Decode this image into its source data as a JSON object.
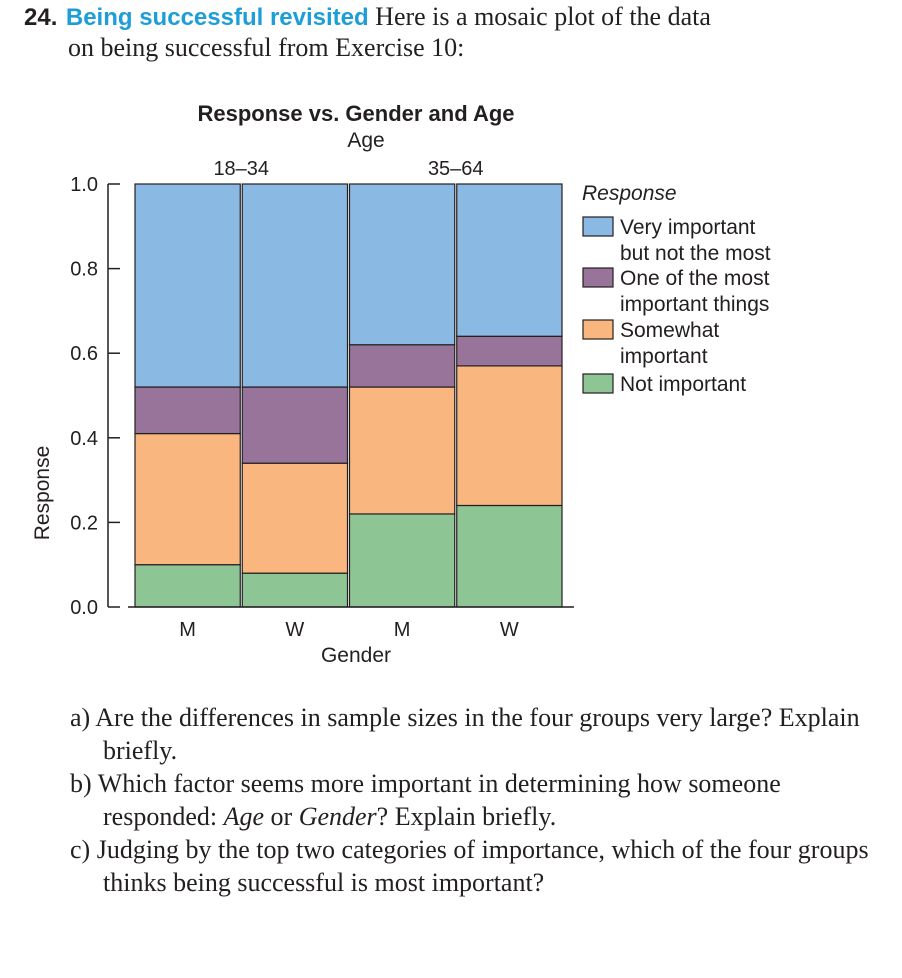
{
  "exercise": {
    "number": "24.",
    "title": "Being successful revisited",
    "intro_line1": "Here is a mosaic plot of the data",
    "intro_line2": "on being successful from Exercise 10:"
  },
  "chart_data": {
    "type": "mosaic",
    "title": "Response vs. Gender and Age",
    "top_axis_label": "Age",
    "age_groups": [
      {
        "label": "18–34",
        "columns": [
          0,
          1
        ]
      },
      {
        "label": "35–64",
        "columns": [
          2,
          3
        ]
      }
    ],
    "xlabel": "Gender",
    "ylabel": "Response",
    "ylim": [
      0,
      1
    ],
    "yticks": [
      "0.0",
      "0.2",
      "0.4",
      "0.6",
      "0.8",
      "1.0"
    ],
    "columns": [
      {
        "gender": "M",
        "age": "18–34",
        "not_important": 0.1,
        "somewhat_important": 0.31,
        "one_of_most": 0.11,
        "very_important": 0.48
      },
      {
        "gender": "W",
        "age": "18–34",
        "not_important": 0.08,
        "somewhat_important": 0.26,
        "one_of_most": 0.18,
        "very_important": 0.48
      },
      {
        "gender": "M",
        "age": "35–64",
        "not_important": 0.22,
        "somewhat_important": 0.3,
        "one_of_most": 0.1,
        "very_important": 0.38
      },
      {
        "gender": "W",
        "age": "35–64",
        "not_important": 0.24,
        "somewhat_important": 0.33,
        "one_of_most": 0.07,
        "very_important": 0.36
      }
    ],
    "legend": {
      "title": "Response",
      "placement": "right",
      "entries": [
        {
          "key": "very_important",
          "lines": [
            "Very important",
            "but not the most"
          ],
          "color": "#8ab9e4"
        },
        {
          "key": "one_of_most",
          "lines": [
            "One of the most",
            "important things"
          ],
          "color": "#98749a"
        },
        {
          "key": "somewhat_important",
          "lines": [
            "Somewhat",
            "important"
          ],
          "color": "#f9b77f"
        },
        {
          "key": "not_important",
          "lines": [
            "Not important"
          ],
          "color": "#8dc594"
        }
      ]
    }
  },
  "questions": [
    {
      "letter": "a)",
      "parts": [
        {
          "text": " Are the differences in sample sizes in the four groups very large? Explain briefly."
        }
      ]
    },
    {
      "letter": "b)",
      "parts": [
        {
          "text": " Which factor seems more important in determining how someone responded: "
        },
        {
          "text": "Age",
          "italic": true
        },
        {
          "text": " or "
        },
        {
          "text": "Gender",
          "italic": true
        },
        {
          "text": "? Explain briefly."
        }
      ]
    },
    {
      "letter": "c)",
      "parts": [
        {
          "text": " Judging by the top two categories of importance, which of the four groups thinks being successful is most important?"
        }
      ]
    }
  ]
}
